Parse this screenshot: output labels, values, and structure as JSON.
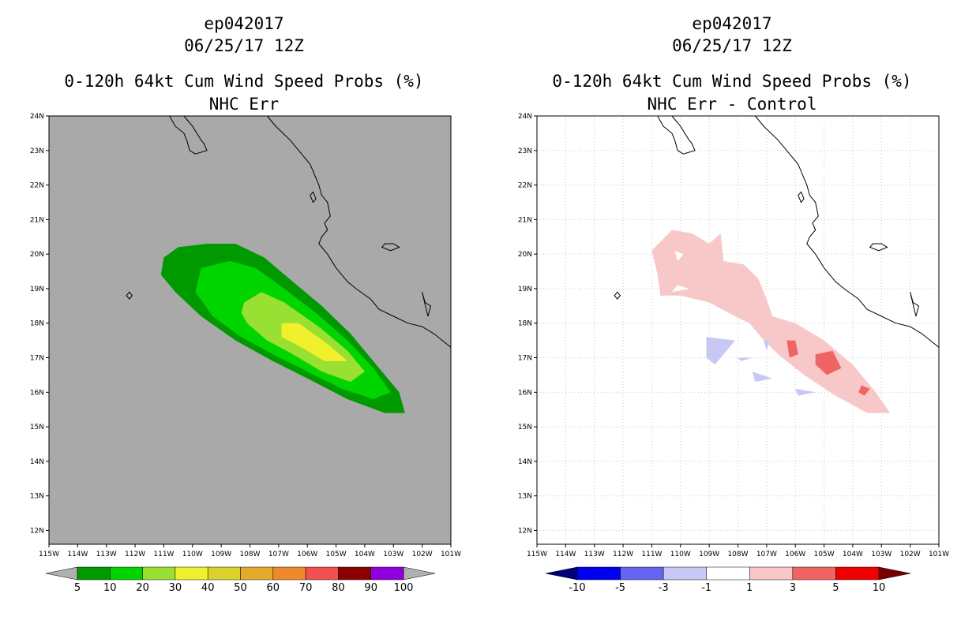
{
  "panels": [
    {
      "id": "left",
      "title_line1": "ep042017",
      "title_line2": "06/25/17 12Z",
      "title_line3": "0-120h 64kt Cum Wind Speed Probs (%)",
      "title_line4": "NHC Err",
      "background": "#a9a9a9",
      "grid": false,
      "colorbar": {
        "colors": [
          "#009900",
          "#00d500",
          "#99e033",
          "#f0f02c",
          "#dcd22c",
          "#e4aa2c",
          "#ef8a2c",
          "#f05050",
          "#8c0000",
          "#8f00dc"
        ],
        "end_arrow_colors": [
          "#b0b0b0",
          "#b0b0b0"
        ],
        "labels": [
          "5",
          "10",
          "20",
          "30",
          "40",
          "50",
          "60",
          "70",
          "80",
          "90",
          "100"
        ]
      },
      "contours": [
        {
          "level": "5-10",
          "color": "#009900",
          "points": [
            [
              -111,
              19.9
            ],
            [
              -110.5,
              20.2
            ],
            [
              -109.5,
              20.3
            ],
            [
              -108.5,
              20.3
            ],
            [
              -107.5,
              19.9
            ],
            [
              -106.5,
              19.2
            ],
            [
              -105.5,
              18.5
            ],
            [
              -104.5,
              17.7
            ],
            [
              -103.5,
              16.7
            ],
            [
              -102.8,
              16
            ],
            [
              -102.6,
              15.4
            ],
            [
              -103.3,
              15.4
            ],
            [
              -104.6,
              15.8
            ],
            [
              -106,
              16.4
            ],
            [
              -107.2,
              16.9
            ],
            [
              -108.5,
              17.5
            ],
            [
              -109.7,
              18.2
            ],
            [
              -110.6,
              18.9
            ],
            [
              -111.1,
              19.4
            ]
          ]
        },
        {
          "level": "10-20",
          "color": "#00d500",
          "points": [
            [
              -109.7,
              19.6
            ],
            [
              -108.7,
              19.8
            ],
            [
              -107.8,
              19.6
            ],
            [
              -106.8,
              19
            ],
            [
              -105.7,
              18.3
            ],
            [
              -104.6,
              17.5
            ],
            [
              -103.7,
              16.7
            ],
            [
              -103.1,
              16
            ],
            [
              -103.7,
              15.8
            ],
            [
              -104.8,
              16.1
            ],
            [
              -106,
              16.6
            ],
            [
              -107.2,
              17.1
            ],
            [
              -108.3,
              17.6
            ],
            [
              -109.3,
              18.2
            ],
            [
              -109.9,
              18.9
            ]
          ]
        },
        {
          "level": "20-30",
          "color": "#99e033",
          "points": [
            [
              -108.2,
              18.6
            ],
            [
              -107.6,
              18.9
            ],
            [
              -106.8,
              18.6
            ],
            [
              -105.6,
              17.9
            ],
            [
              -104.6,
              17.2
            ],
            [
              -104,
              16.6
            ],
            [
              -104.5,
              16.3
            ],
            [
              -105.5,
              16.6
            ],
            [
              -106.5,
              17.1
            ],
            [
              -107.4,
              17.5
            ],
            [
              -108.1,
              18
            ],
            [
              -108.3,
              18.3
            ]
          ]
        },
        {
          "level": "30-40",
          "color": "#f0f02c",
          "points": [
            [
              -106.9,
              18
            ],
            [
              -106.3,
              18
            ],
            [
              -105.3,
              17.4
            ],
            [
              -104.6,
              16.9
            ],
            [
              -105.4,
              16.9
            ],
            [
              -106.2,
              17.3
            ],
            [
              -106.9,
              17.6
            ]
          ]
        }
      ]
    },
    {
      "id": "right",
      "title_line1": "ep042017",
      "title_line2": "06/25/17 12Z",
      "title_line3": "0-120h 64kt Cum Wind Speed Probs (%)",
      "title_line4": "NHC Err - Control",
      "background": "#ffffff",
      "grid": true,
      "colorbar": {
        "colors": [
          "#0000f0",
          "#6464f0",
          "#c8c8f5",
          "#ffffff",
          "#f8c8c8",
          "#f06464",
          "#f00000"
        ],
        "end_arrow_colors": [
          "#00007a",
          "#780000"
        ],
        "labels": [
          "-10",
          "-5",
          "-3",
          "-1",
          "1",
          "3",
          "5",
          "10"
        ]
      },
      "contours": [
        {
          "level": "1-3",
          "color": "#f8c8c8",
          "points": [
            [
              -111,
              20.1
            ],
            [
              -110.3,
              20.7
            ],
            [
              -109.6,
              20.6
            ],
            [
              -109,
              20.3
            ],
            [
              -108.6,
              20.6
            ],
            [
              -108.5,
              19.8
            ],
            [
              -107.8,
              19.7
            ],
            [
              -107.3,
              19.3
            ],
            [
              -107,
              18.7
            ],
            [
              -106.8,
              18.2
            ],
            [
              -106,
              18
            ],
            [
              -105,
              17.5
            ],
            [
              -104,
              16.8
            ],
            [
              -103.2,
              16
            ],
            [
              -102.7,
              15.4
            ],
            [
              -103.5,
              15.4
            ],
            [
              -104.6,
              15.9
            ],
            [
              -105.7,
              16.5
            ],
            [
              -106.6,
              17.1
            ],
            [
              -107.2,
              17.6
            ],
            [
              -107.6,
              18
            ],
            [
              -108.1,
              18.2
            ],
            [
              -109,
              18.6
            ],
            [
              -110,
              18.8
            ],
            [
              -110.7,
              18.8
            ],
            [
              -110.8,
              19.4
            ]
          ]
        },
        {
          "level": "3-5",
          "color": "#f06464",
          "points": [
            [
              -105.3,
              17.1
            ],
            [
              -104.7,
              17.2
            ],
            [
              -104.4,
              16.7
            ],
            [
              -104.9,
              16.5
            ],
            [
              -105.3,
              16.8
            ]
          ]
        },
        {
          "level": "3-5",
          "color": "#f06464",
          "points": [
            [
              -106.3,
              17.5
            ],
            [
              -106,
              17.5
            ],
            [
              -105.9,
              17.1
            ],
            [
              -106.2,
              17
            ]
          ]
        },
        {
          "level": "3-5",
          "color": "#f06464",
          "points": [
            [
              -103.7,
              16.2
            ],
            [
              -103.4,
              16.1
            ],
            [
              -103.6,
              15.9
            ],
            [
              -103.8,
              16
            ]
          ]
        },
        {
          "level": "-1--3",
          "color": "#c8c8f5",
          "points": [
            [
              -109.1,
              17.6
            ],
            [
              -108.1,
              17.5
            ],
            [
              -108.5,
              17.1
            ],
            [
              -108.8,
              16.8
            ],
            [
              -109.1,
              17
            ]
          ]
        },
        {
          "level": "-1--3",
          "color": "#c8c8f5",
          "points": [
            [
              -107.5,
              16.6
            ],
            [
              -106.8,
              16.4
            ],
            [
              -107.4,
              16.3
            ]
          ]
        },
        {
          "level": "-1--3",
          "color": "#c8c8f5",
          "points": [
            [
              -106,
              16.1
            ],
            [
              -105.3,
              16
            ],
            [
              -105.9,
              15.9
            ]
          ]
        },
        {
          "level": "-1--3",
          "color": "#c8c8f5",
          "points": [
            [
              -108,
              17
            ],
            [
              -107.5,
              17
            ],
            [
              -107.9,
              16.9
            ]
          ]
        },
        {
          "level": "-1--3",
          "color": "#c8c8f5",
          "points": [
            [
              -107.1,
              17.5
            ],
            [
              -106.9,
              17.5
            ],
            [
              -107,
              17.2
            ]
          ]
        }
      ],
      "holes": [
        {
          "points": [
            [
              -110.2,
              20.1
            ],
            [
              -109.9,
              20
            ],
            [
              -110.1,
              19.8
            ]
          ]
        },
        {
          "points": [
            [
              -110.1,
              19.1
            ],
            [
              -109.7,
              19
            ],
            [
              -110.3,
              18.9
            ]
          ]
        }
      ]
    }
  ],
  "map": {
    "lon_ticks": [
      "115W",
      "114W",
      "113W",
      "112W",
      "111W",
      "110W",
      "109W",
      "108W",
      "107W",
      "106W",
      "105W",
      "104W",
      "103W",
      "102W",
      "101W"
    ],
    "lat_ticks": [
      "12N",
      "13N",
      "14N",
      "15N",
      "16N",
      "17N",
      "18N",
      "19N",
      "20N",
      "21N",
      "22N",
      "23N",
      "24N"
    ]
  }
}
